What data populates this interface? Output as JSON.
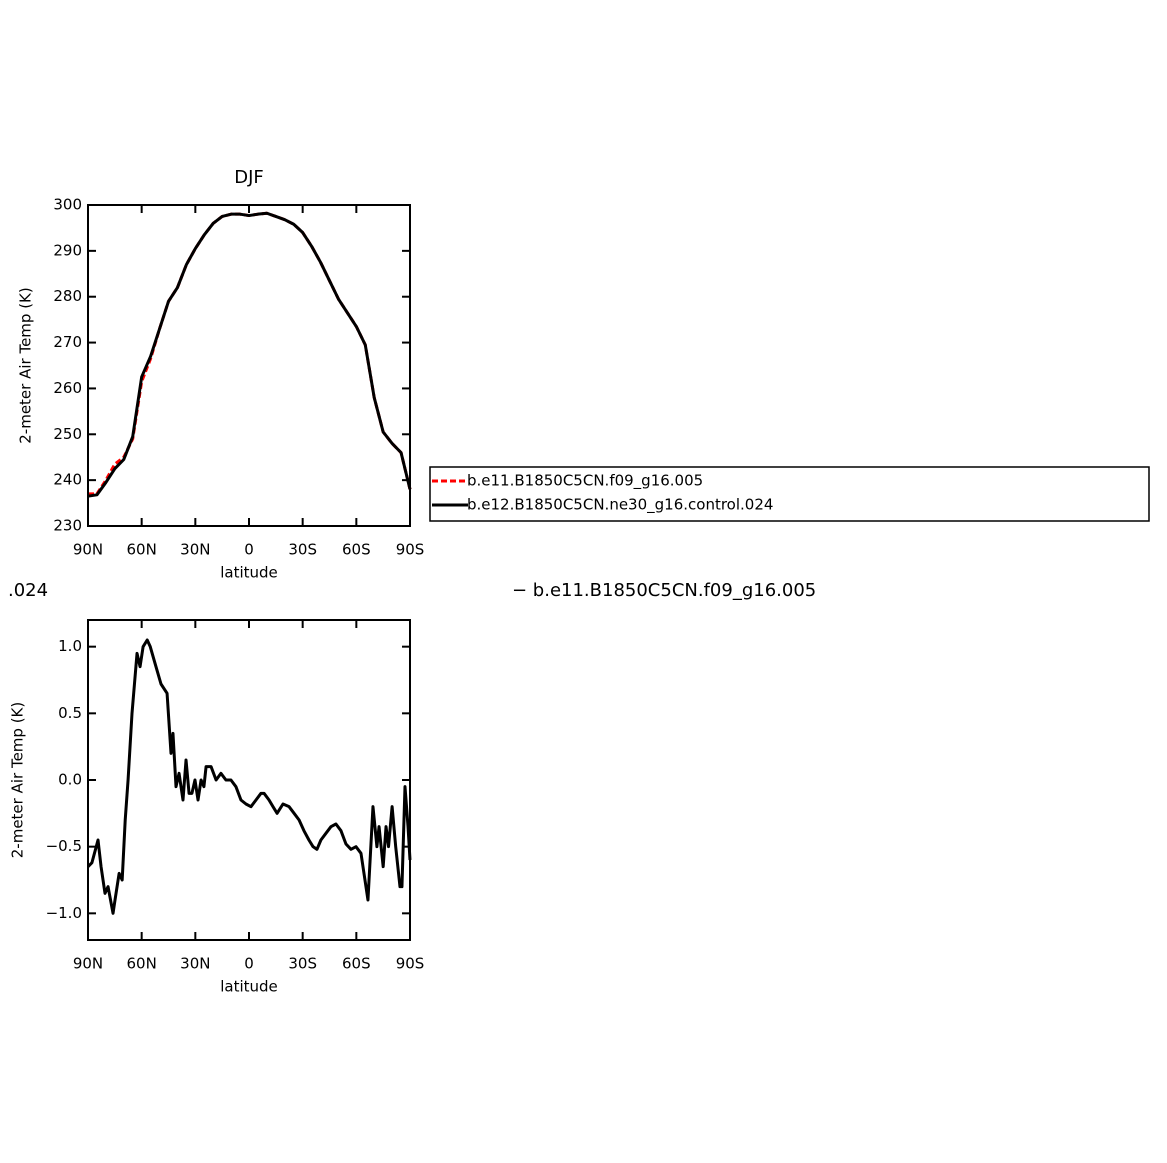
{
  "annotations": [
    ".024",
    "− b.e11.B1850C5CN.f09_g16.005"
  ],
  "chart_data": [
    {
      "type": "line",
      "title": "DJF",
      "xlabel": "latitude",
      "ylabel": "2-meter Air Temp (K)",
      "x": [
        90,
        85,
        80,
        75,
        70,
        65,
        60,
        55,
        50,
        45,
        40,
        35,
        30,
        25,
        20,
        15,
        10,
        5,
        0,
        -5,
        -10,
        -15,
        -20,
        -25,
        -30,
        -35,
        -40,
        -45,
        -50,
        -55,
        -60,
        -65,
        -70,
        -75,
        -80,
        -85,
        -90
      ],
      "series": [
        {
          "name": "b.e11.B1850C5CN.f09_g16.005",
          "color": "#ff0000",
          "linestyle": "dashed",
          "values": [
            237,
            237,
            240,
            243.5,
            245,
            249,
            261.5,
            266.5,
            273,
            279,
            282,
            287,
            290.5,
            293.5,
            296,
            297.5,
            298,
            298,
            297.7,
            298,
            298.2,
            297.5,
            296.8,
            295.8,
            294,
            291,
            287.5,
            283.5,
            279.5,
            276.5,
            273.5,
            269.5,
            258,
            250.5,
            248,
            246,
            238
          ]
        },
        {
          "name": "b.e12.B1850C5CN.ne30_g16.control.024",
          "color": "#000000",
          "linestyle": "solid",
          "values": [
            236.5,
            236.8,
            239.5,
            242.5,
            244.5,
            249.5,
            262.5,
            267,
            273,
            279,
            282,
            287,
            290.5,
            293.5,
            296,
            297.5,
            298,
            298,
            297.7,
            298,
            298.2,
            297.5,
            296.8,
            295.8,
            294,
            291,
            287.5,
            283.5,
            279.5,
            276.5,
            273.5,
            269.5,
            258,
            250.5,
            248,
            246,
            238
          ]
        }
      ],
      "xlim": [
        90,
        -90
      ],
      "xticks": [
        {
          "value": 90,
          "label": "90N"
        },
        {
          "value": 60,
          "label": "60N"
        },
        {
          "value": 30,
          "label": "30N"
        },
        0,
        {
          "value": -30,
          "label": "30S"
        },
        {
          "value": -60,
          "label": "60S"
        },
        {
          "value": -90,
          "label": "90S"
        }
      ],
      "ylim": [
        230,
        300
      ],
      "yticks": [
        230,
        240,
        250,
        260,
        270,
        280,
        290,
        300
      ],
      "legend": "right"
    },
    {
      "type": "line",
      "xlabel": "latitude",
      "ylabel": "2-meter Air Temp (K)",
      "x": [
        90,
        87.8,
        84.4,
        82.7,
        80.5,
        78.8,
        76,
        74.9,
        72.6,
        70.9,
        69.2,
        67.6,
        65.4,
        62.6,
        60.9,
        59.2,
        56.9,
        55.2,
        52,
        49.2,
        45.8,
        43.6,
        42.5,
        40.8,
        39.1,
        36.9,
        35.2,
        33.5,
        31.9,
        30.2,
        28.5,
        26.8,
        25.2,
        24,
        21.2,
        18.4,
        15.7,
        12.9,
        10.1,
        7.3,
        4.5,
        1.7,
        -1.1,
        -3.9,
        -6.7,
        -8.4,
        -11.2,
        -13.4,
        -15.7,
        -19,
        -22.4,
        -25.2,
        -28,
        -30.7,
        -33.5,
        -35.8,
        -38,
        -40.2,
        -43,
        -45.8,
        -48.6,
        -51.4,
        -54.2,
        -57,
        -59.8,
        -62.6,
        -66.5,
        -69.3,
        -71.5,
        -72.7,
        -75,
        -76.6,
        -78,
        -80,
        -82,
        -84.4,
        -85.5,
        -87.2,
        -88.9,
        -90
      ],
      "series": [
        {
          "color": "#000000",
          "linestyle": "solid",
          "values": [
            -0.65,
            -0.62,
            -0.45,
            -0.65,
            -0.85,
            -0.8,
            -1.0,
            -0.9,
            -0.7,
            -0.75,
            -0.3,
            0.0,
            0.5,
            0.95,
            0.85,
            1.0,
            1.05,
            1.0,
            0.85,
            0.72,
            0.65,
            0.2,
            0.35,
            -0.05,
            0.05,
            -0.15,
            0.15,
            -0.1,
            -0.1,
            0.0,
            -0.15,
            0.0,
            -0.05,
            0.1,
            0.1,
            0.0,
            0.05,
            0.0,
            0.0,
            -0.05,
            -0.15,
            -0.18,
            -0.2,
            -0.15,
            -0.1,
            -0.1,
            -0.15,
            -0.2,
            -0.25,
            -0.18,
            -0.2,
            -0.25,
            -0.3,
            -0.38,
            -0.45,
            -0.5,
            -0.52,
            -0.45,
            -0.4,
            -0.35,
            -0.33,
            -0.38,
            -0.48,
            -0.52,
            -0.5,
            -0.55,
            -0.9,
            -0.2,
            -0.5,
            -0.35,
            -0.65,
            -0.35,
            -0.5,
            -0.2,
            -0.5,
            -0.8,
            -0.8,
            -0.05,
            -0.35,
            -0.6
          ]
        }
      ],
      "xlim": [
        90,
        -90
      ],
      "xticks": [
        {
          "value": 90,
          "label": "90N"
        },
        {
          "value": 60,
          "label": "60N"
        },
        {
          "value": 30,
          "label": "30N"
        },
        0,
        {
          "value": -30,
          "label": "30S"
        },
        {
          "value": -60,
          "label": "60S"
        },
        {
          "value": -90,
          "label": "90S"
        }
      ],
      "ylim": [
        -1.2,
        1.2
      ],
      "yticks": [
        {
          "value": -1,
          "label": "−1.0"
        },
        {
          "value": -0.5,
          "label": "−0.5"
        },
        {
          "value": 0,
          "label": "0.0"
        },
        {
          "value": 0.5,
          "label": "0.5"
        },
        {
          "value": 1,
          "label": "1.0"
        }
      ]
    }
  ]
}
